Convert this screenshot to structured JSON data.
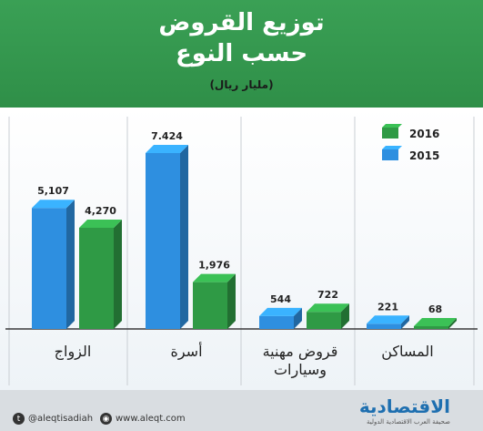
{
  "header": {
    "title_line1": "توزيع القروض",
    "title_line2": "حسب النوع",
    "unit": "(مليار ريال)"
  },
  "chart_data": {
    "type": "bar",
    "categories": [
      "الزواج",
      "أسرة",
      "قروض مهنية وسيارات",
      "المساكن"
    ],
    "category_lines": [
      [
        "الزواج"
      ],
      [
        "أسرة"
      ],
      [
        "قروض مهنية",
        "وسيارات"
      ],
      [
        "المساكن"
      ]
    ],
    "series": [
      {
        "name": "2015",
        "color": "#2e8fe0",
        "values": [
          5.107,
          7.424,
          0.544,
          0.221
        ],
        "labels": [
          "5,107",
          "7.424",
          "544",
          "221"
        ]
      },
      {
        "name": "2016",
        "color": "#2f9a45",
        "values": [
          4.27,
          1.976,
          0.722,
          0.068
        ],
        "labels": [
          "4,270",
          "1,976",
          "722",
          "68"
        ]
      }
    ],
    "legend": {
      "position": "top-right",
      "entries": [
        "2016",
        "2015"
      ]
    },
    "grid": false
  },
  "footer": {
    "twitter": "@aleqtisadiah",
    "website": "www.aleqt.com",
    "brand": "الاقتصادية",
    "brand_sub": "صحيفة العرب الاقتصادية الدولية"
  }
}
